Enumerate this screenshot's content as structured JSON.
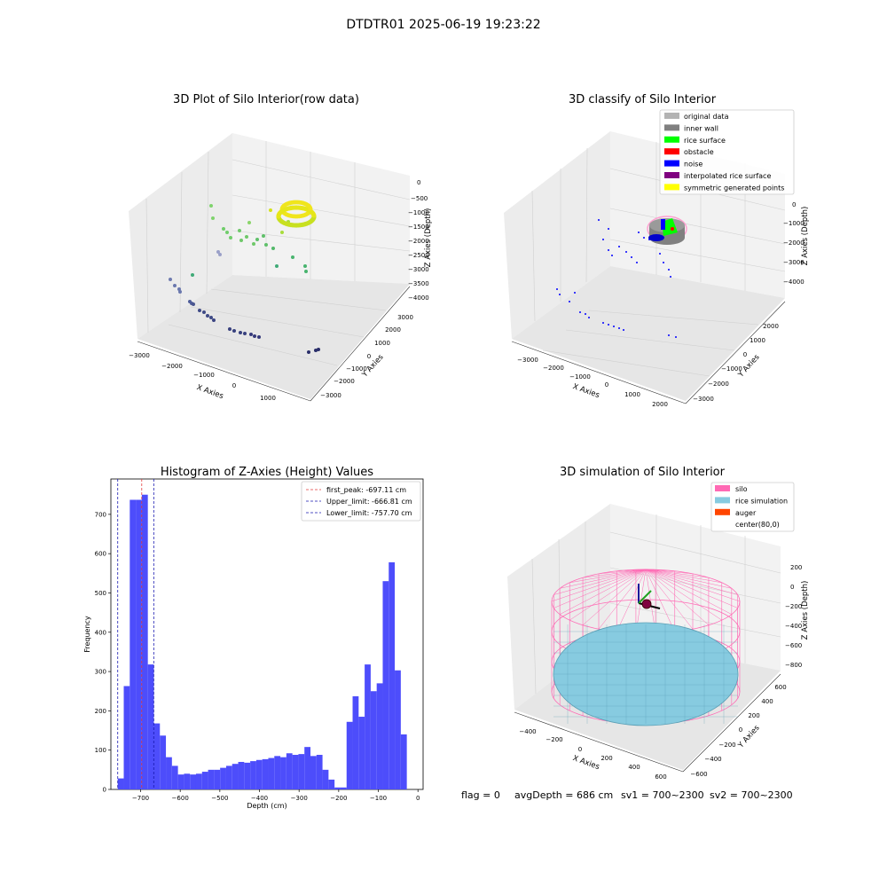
{
  "figure_title": "DTDTR01 2025-06-19 19:23:22",
  "footer": {
    "flag": "flag = 0",
    "avg_depth": "avgDepth = 686 cm",
    "sv1": "sv1 = 700~2300",
    "sv2": "sv2 = 700~2300"
  },
  "colors": {
    "hist_bar": "#4d4dfb",
    "first_peak": "#e23b3b",
    "limits": "#1a1ab0",
    "pane": "#f2f2f2",
    "grid": "#d9d9d9",
    "silo": "#ff69b4",
    "rice": "#87cbe0",
    "auger": "#ff4500"
  },
  "chart_data": [
    {
      "type": "scatter",
      "subtype": "3d",
      "title": "3D Plot of Silo Interior(row data)",
      "xlabel": "X Axies",
      "ylabel": "Y Axies",
      "zlabel": "Z Axies (Depth)",
      "x_ticks": [
        "−3000",
        "−2000",
        "−1000",
        "0",
        "1000"
      ],
      "y_ticks": [
        "3000",
        "2000",
        "1000",
        "0",
        "−1000",
        "−2000",
        "−3000"
      ],
      "z_ticks": [
        "0",
        "−500",
        "−1000",
        "−1500",
        "−2000",
        "−2500",
        "−3000",
        "−3500",
        "−4000"
      ],
      "colormap": "viridis by depth",
      "cluster_note": "dense ring of points near depth −700 at the silo center"
    },
    {
      "type": "scatter",
      "subtype": "3d",
      "title": "3D classify of Silo Interior",
      "xlabel": "X Axies",
      "ylabel": "Y Axies",
      "zlabel": "Z Axies (Depth)",
      "x_ticks": [
        "−3000",
        "−2000",
        "−1000",
        "0",
        "1000",
        "2000"
      ],
      "y_ticks": [
        "2000",
        "1000",
        "0",
        "−1000",
        "−2000",
        "−3000"
      ],
      "z_ticks": [
        "0",
        "−1000",
        "−2000",
        "−3000",
        "−4000"
      ],
      "legend_position": "top-right",
      "legend": [
        {
          "label": "original data",
          "color": "#b3b3b3"
        },
        {
          "label": "inner wall",
          "color": "#808080"
        },
        {
          "label": "rice surface",
          "color": "#00ff00"
        },
        {
          "label": "obstacle",
          "color": "#ff0000"
        },
        {
          "label": "noise",
          "color": "#0000ff"
        },
        {
          "label": "interpolated rice surface",
          "color": "#800080"
        },
        {
          "label": "symmetric generated points",
          "color": "#ffff00"
        }
      ]
    },
    {
      "type": "bar",
      "subtype": "histogram",
      "title": "Histogram of Z-Axies (Height) Values",
      "xlabel": "Depth (cm)",
      "ylabel": "Frequency",
      "xlim": [
        -775,
        13
      ],
      "ylim": [
        0,
        790
      ],
      "x_ticks": [
        -700,
        -600,
        -500,
        -400,
        -300,
        -200,
        -100,
        0
      ],
      "x_tick_labels": [
        "−700",
        "−600",
        "−500",
        "−400",
        "−300",
        "−200",
        "−100",
        "0"
      ],
      "y_ticks": [
        0,
        100,
        200,
        300,
        400,
        500,
        600,
        700
      ],
      "bin_start": -757.7,
      "bin_width": 15.2,
      "values": [
        28,
        263,
        737,
        737,
        750,
        318,
        168,
        137,
        82,
        60,
        38,
        40,
        38,
        40,
        45,
        50,
        50,
        55,
        60,
        65,
        70,
        68,
        72,
        75,
        77,
        80,
        85,
        82,
        92,
        88,
        90,
        108,
        85,
        88,
        50,
        25,
        5,
        5,
        172,
        237,
        185,
        318,
        250,
        270,
        530,
        578,
        303,
        140
      ],
      "lines": [
        {
          "label": "first_peak: -697.11 cm",
          "x": -697.11,
          "color": "#e23b3b"
        },
        {
          "label": "Upper_limit: -666.81 cm",
          "x": -666.81,
          "color": "#1a1ab0"
        },
        {
          "label": "Lower_limit: -757.70 cm",
          "x": -757.7,
          "color": "#1a1ab0"
        }
      ],
      "legend_position": "top-right"
    },
    {
      "type": "area",
      "subtype": "3d-surface",
      "title": "3D simulation of Silo Interior",
      "xlabel": "X Axies",
      "ylabel": "Y Axies",
      "zlabel": "Z Axies (Depth)",
      "x_ticks": [
        "−400",
        "−200",
        "0",
        "200",
        "400",
        "600"
      ],
      "y_ticks": [
        "600",
        "400",
        "200",
        "0",
        "−200",
        "−400",
        "−600"
      ],
      "z_ticks": [
        "200",
        "0",
        "−200",
        "−400",
        "−600",
        "−800"
      ],
      "legend_position": "top-right",
      "legend": [
        {
          "label": "silo",
          "color": "#ff69b4"
        },
        {
          "label": "rice simulation",
          "color": "#87cbe0"
        },
        {
          "label": "auger",
          "color": "#ff4500"
        },
        {
          "label": "center(80,0)",
          "color": ""
        }
      ]
    }
  ]
}
